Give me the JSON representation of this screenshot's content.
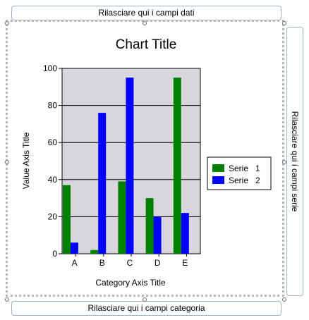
{
  "dropzones": {
    "data_fields": "Rilasciare qui i campi dati",
    "series_fields": "Rilasciare qui i campi serie",
    "category_fields": "Rilasciare qui i campi categoria"
  },
  "chart_data": {
    "type": "bar",
    "title": "Chart Title",
    "xlabel": "Category Axis Title",
    "ylabel": "Value Axis Title",
    "categories": [
      "A",
      "B",
      "C",
      "D",
      "E"
    ],
    "ylim": [
      0,
      100
    ],
    "yticks": [
      "0",
      "20",
      "40",
      "60",
      "80",
      "100"
    ],
    "grid": true,
    "legend_position": "right",
    "plot_background": "#d8d5db",
    "series": [
      {
        "name": "Serie   1",
        "color": "#008000",
        "values": [
          37,
          2,
          39,
          30,
          95
        ]
      },
      {
        "name": "Serie   2",
        "color": "#0000ff",
        "values": [
          6,
          76,
          95,
          20,
          22
        ]
      }
    ]
  }
}
